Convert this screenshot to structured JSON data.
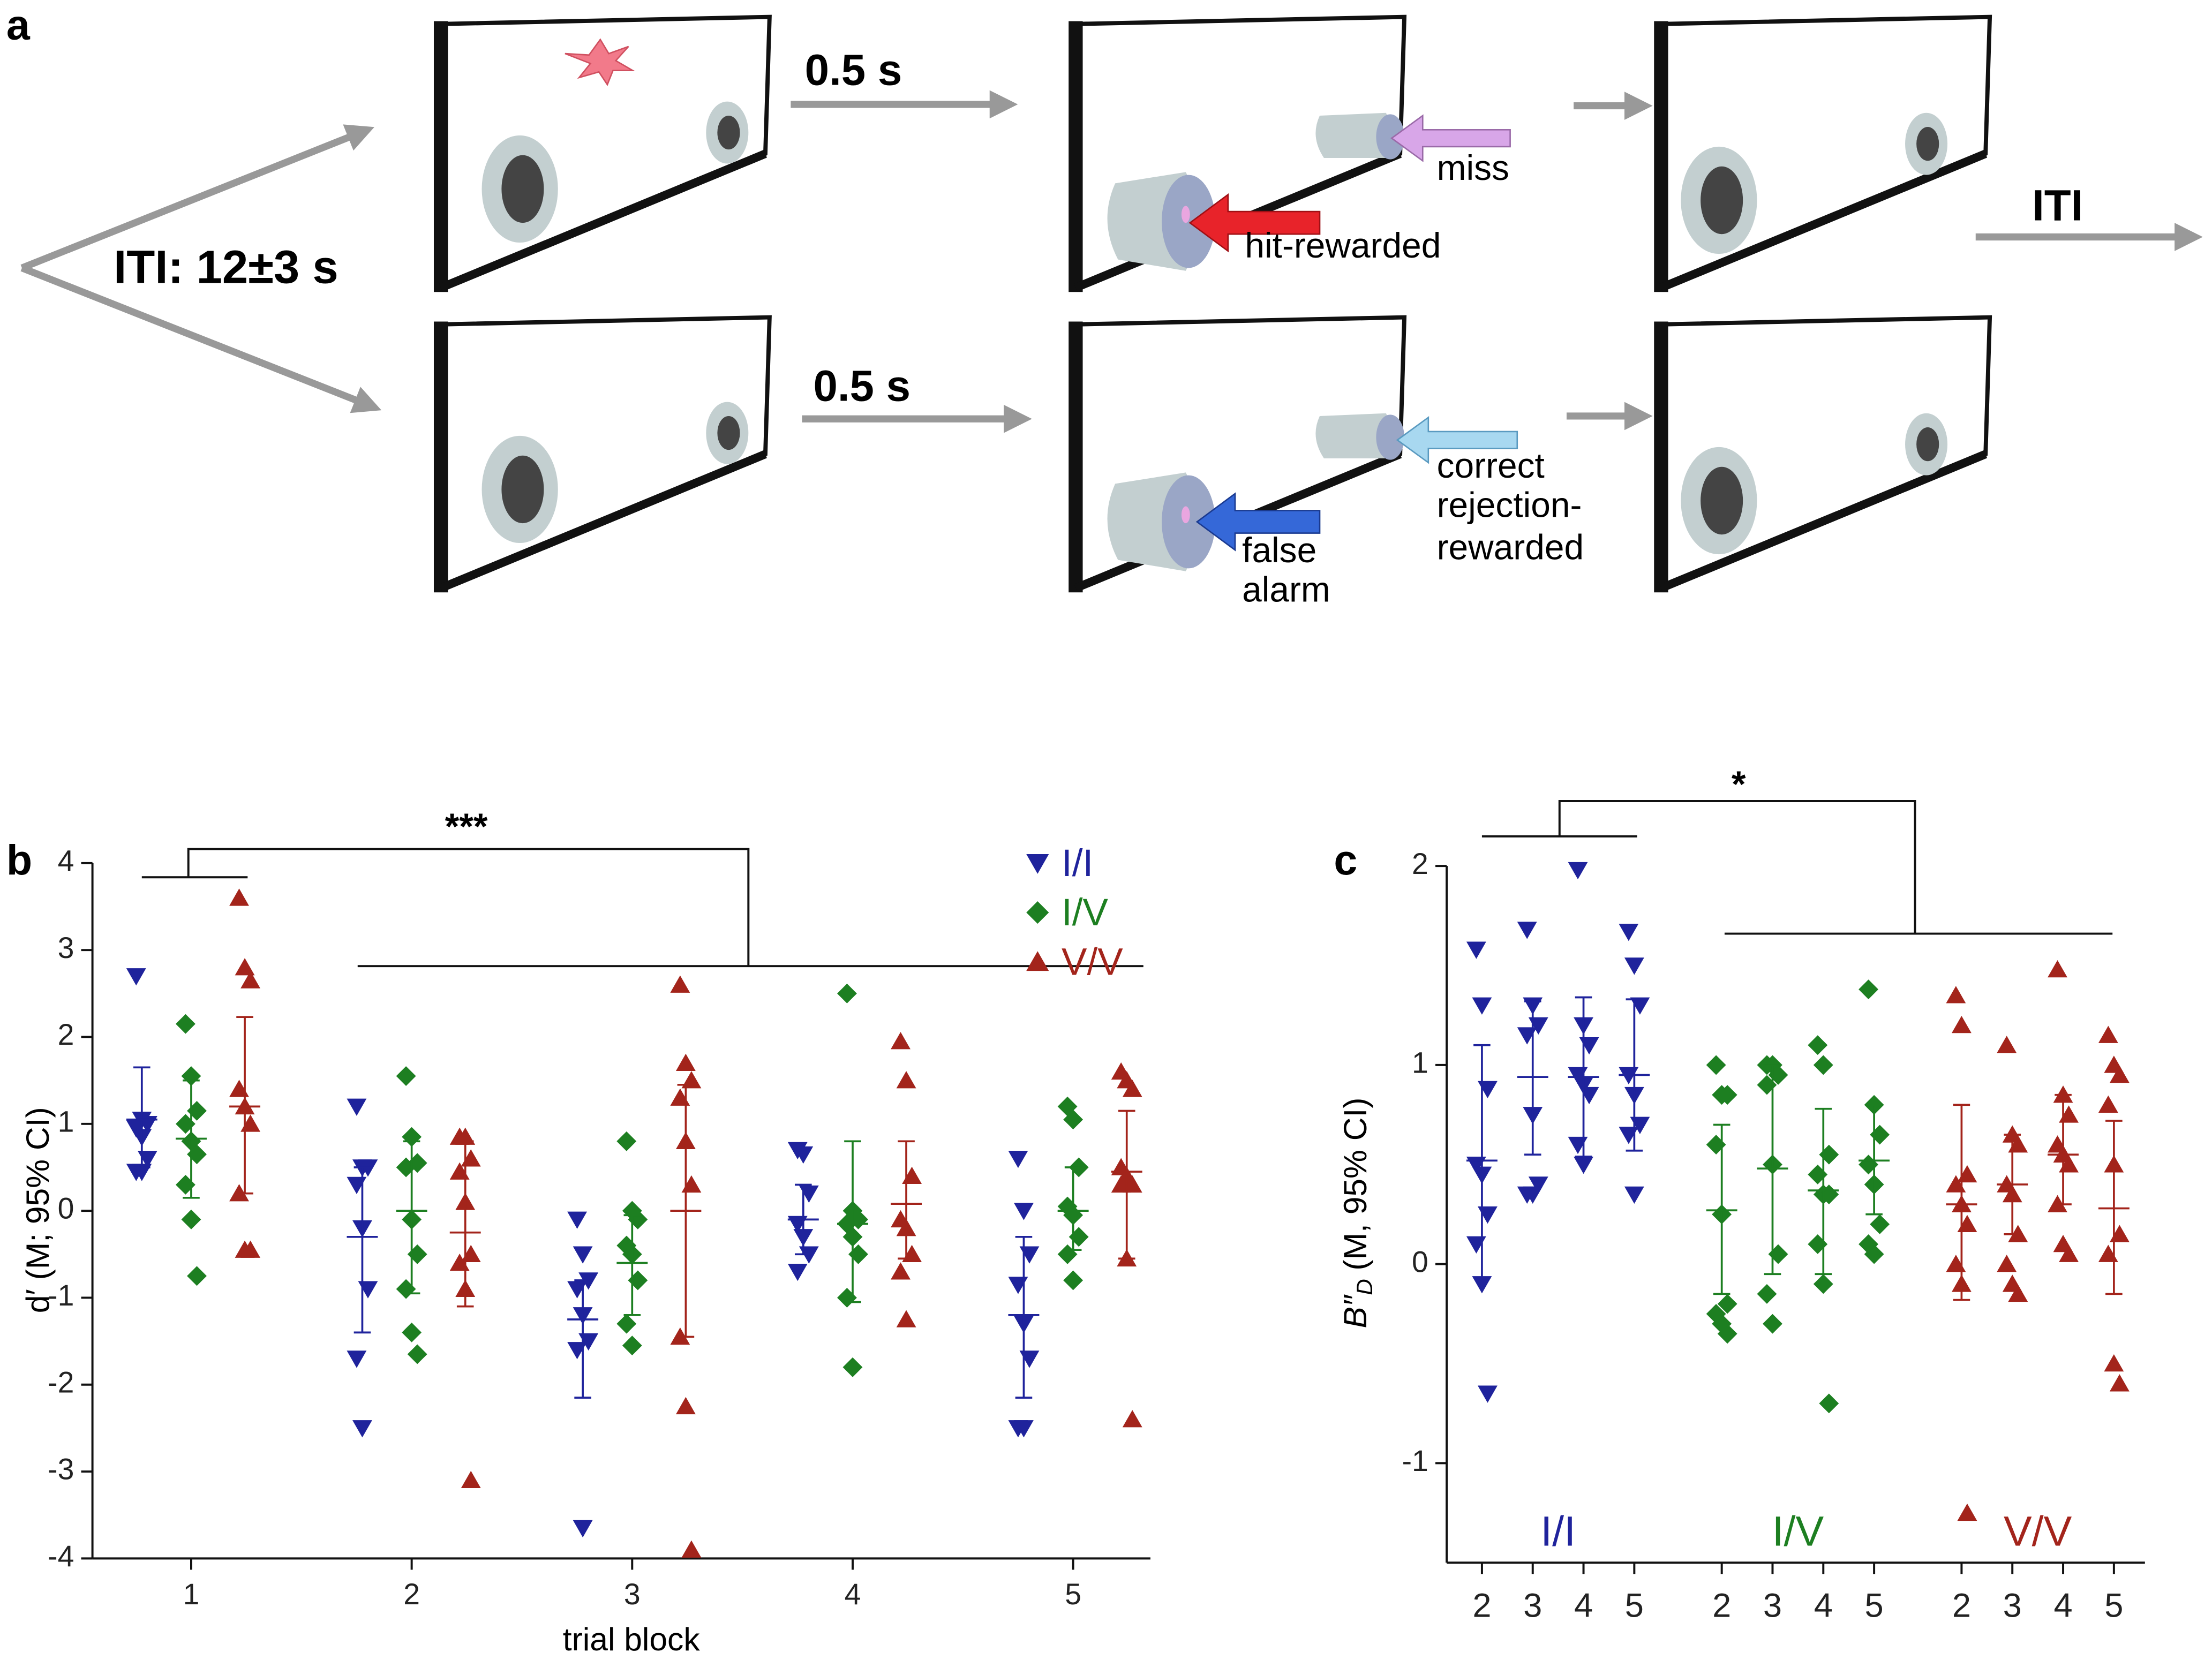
{
  "diagram": {
    "panel_label": "a",
    "iti_label": "ITI: 12±3 s",
    "delay_labels": [
      "0.5 s",
      "0.5 s"
    ],
    "miss": "miss",
    "hit": "hit-rewarded",
    "false_alarm": [
      "false",
      "alarm"
    ],
    "correct_rejection": [
      "correct",
      "rejection-",
      "rewarded"
    ],
    "iti_end": "ITI"
  },
  "chart_data": [
    {
      "type": "scatter",
      "panel_label": "b",
      "ylabel": "d′ (M; 95% CI)",
      "xlabel": "trial block",
      "significance": "***",
      "categories": [
        "1",
        "2",
        "3",
        "4",
        "5"
      ],
      "ylim": [
        -4,
        4
      ],
      "yticks": [
        -4,
        -3,
        -2,
        -1,
        0,
        1,
        2,
        3,
        4
      ],
      "legend": "top-right",
      "series": [
        {
          "name": "I/I",
          "color": "#1f239c",
          "marker": "triangle-down",
          "points": [
            [
              2.7,
              1.05,
              1.0,
              0.95,
              0.85,
              0.6,
              0.45,
              0.45,
              1.0
            ],
            [
              1.2,
              0.5,
              0.5,
              0.3,
              -0.2,
              -0.9,
              -1.7,
              -2.5
            ],
            [
              -0.1,
              -0.5,
              -0.8,
              -0.9,
              -1.2,
              -1.5,
              -1.6,
              -3.65
            ],
            [
              0.7,
              0.65,
              0.2,
              -0.15,
              -0.3,
              -0.5,
              -0.7
            ],
            [
              0.6,
              0.0,
              -0.5,
              -0.85,
              -1.3,
              -1.7,
              -2.5,
              -2.5
            ]
          ],
          "mean": [
            1.05,
            -0.3,
            -1.25,
            -0.1,
            -1.2
          ],
          "ci": [
            [
              0.5,
              1.65
            ],
            [
              -1.4,
              0.5
            ],
            [
              -2.15,
              -0.8
            ],
            [
              -0.5,
              0.3
            ],
            [
              -2.15,
              -0.3
            ]
          ]
        },
        {
          "name": "I/V",
          "color": "#1d7f21",
          "marker": "diamond",
          "points": [
            [
              2.15,
              1.55,
              1.15,
              1.0,
              0.8,
              0.65,
              0.3,
              -0.1,
              -0.75
            ],
            [
              1.55,
              0.85,
              0.55,
              0.5,
              -0.1,
              -0.5,
              -0.9,
              -1.4,
              -1.65
            ],
            [
              0.8,
              0.0,
              -0.1,
              -0.4,
              -0.5,
              -0.8,
              -1.3,
              -1.55
            ],
            [
              2.5,
              0.0,
              -0.1,
              -0.15,
              -0.3,
              -0.5,
              -1.0,
              -1.8
            ],
            [
              1.2,
              1.05,
              0.5,
              0.05,
              -0.05,
              -0.3,
              -0.5,
              -0.8
            ]
          ],
          "mean": [
            0.83,
            0.0,
            -0.6,
            -0.15,
            0.0
          ],
          "ci": [
            [
              0.15,
              1.5
            ],
            [
              -0.95,
              0.8
            ],
            [
              -1.2,
              -0.05
            ],
            [
              -1.05,
              0.8
            ],
            [
              -0.45,
              0.5
            ]
          ]
        },
        {
          "name": "V/V",
          "color": "#a3241b",
          "marker": "triangle-up",
          "points": [
            [
              3.6,
              2.8,
              2.65,
              1.4,
              1.2,
              1.0,
              0.2,
              -0.45,
              -0.45
            ],
            [
              0.85,
              0.85,
              0.6,
              0.45,
              0.1,
              -0.5,
              -0.6,
              -0.9,
              -3.1
            ],
            [
              2.6,
              1.7,
              1.5,
              1.3,
              0.8,
              0.3,
              -1.45,
              -2.25,
              -3.9
            ],
            [
              1.95,
              1.5,
              0.4,
              -0.1,
              -0.2,
              -0.5,
              -0.7,
              -1.25
            ],
            [
              1.6,
              1.5,
              1.4,
              0.5,
              0.4,
              0.3,
              0.3,
              -0.55,
              -2.4
            ]
          ],
          "mean": [
            1.2,
            -0.25,
            0.0,
            0.08,
            0.45
          ],
          "ci": [
            [
              0.2,
              2.23
            ],
            [
              -1.1,
              0.8
            ],
            [
              -1.45,
              1.45
            ],
            [
              -0.55,
              0.8
            ],
            [
              -0.55,
              1.15
            ]
          ]
        }
      ]
    },
    {
      "type": "scatter",
      "panel_label": "c",
      "ylabel_parts": [
        "B″",
        "D",
        "(M, 95% CI)"
      ],
      "significance": "*",
      "ylim": [
        -1.5,
        2
      ],
      "yticks": [
        -1,
        0,
        1,
        2
      ],
      "groups": [
        {
          "name": "I/I",
          "color": "#1f239c",
          "marker": "triangle-down",
          "categories": [
            "2",
            "3",
            "4",
            "5"
          ],
          "points": [
            [
              1.58,
              1.3,
              0.88,
              0.5,
              0.45,
              0.25,
              0.1,
              -0.1,
              -0.65
            ],
            [
              1.68,
              1.3,
              1.2,
              1.15,
              0.75,
              0.4,
              0.35,
              0.35
            ],
            [
              1.98,
              1.2,
              1.1,
              0.95,
              0.9,
              0.85,
              0.6,
              0.5
            ],
            [
              1.67,
              1.5,
              1.3,
              0.95,
              0.85,
              0.7,
              0.65,
              0.35
            ]
          ],
          "mean": [
            0.52,
            0.94,
            0.94,
            0.95
          ],
          "ci": [
            [
              -0.07,
              1.1
            ],
            [
              0.55,
              1.32
            ],
            [
              0.54,
              1.34
            ],
            [
              0.57,
              1.33
            ]
          ]
        },
        {
          "name": "I/V",
          "color": "#1d7f21",
          "marker": "diamond",
          "categories": [
            "2",
            "3",
            "4",
            "5"
          ],
          "points": [
            [
              1.0,
              0.85,
              0.85,
              0.6,
              0.25,
              -0.2,
              -0.25,
              -0.3,
              -0.35
            ],
            [
              1.0,
              1.0,
              0.95,
              0.9,
              0.5,
              0.05,
              -0.15,
              -0.3
            ],
            [
              1.1,
              1.0,
              0.55,
              0.45,
              0.35,
              0.35,
              0.1,
              -0.1,
              -0.7
            ],
            [
              1.38,
              0.8,
              0.65,
              0.5,
              0.4,
              0.2,
              0.1,
              0.05
            ]
          ],
          "mean": [
            0.27,
            0.48,
            0.37,
            0.52
          ],
          "ci": [
            [
              -0.15,
              0.7
            ],
            [
              -0.05,
              1.0
            ],
            [
              -0.05,
              0.78
            ],
            [
              0.25,
              0.8
            ]
          ]
        },
        {
          "name": "V/V",
          "color": "#a3241b",
          "marker": "triangle-up",
          "categories": [
            "2",
            "3",
            "4",
            "5"
          ],
          "points": [
            [
              1.35,
              1.2,
              0.45,
              0.4,
              0.3,
              0.2,
              0.0,
              -0.1,
              -1.25
            ],
            [
              1.1,
              0.65,
              0.6,
              0.4,
              0.35,
              0.15,
              0.0,
              -0.1,
              -0.15
            ],
            [
              1.48,
              0.85,
              0.75,
              0.6,
              0.55,
              0.5,
              0.3,
              0.1,
              0.05
            ],
            [
              1.15,
              1.0,
              0.95,
              0.8,
              0.5,
              0.15,
              0.05,
              -0.5,
              -0.6
            ]
          ],
          "mean": [
            0.3,
            0.4,
            0.55,
            0.28
          ],
          "ci": [
            [
              -0.18,
              0.8
            ],
            [
              0.15,
              0.65
            ],
            [
              0.3,
              0.85
            ],
            [
              -0.15,
              0.72
            ]
          ]
        }
      ]
    }
  ]
}
